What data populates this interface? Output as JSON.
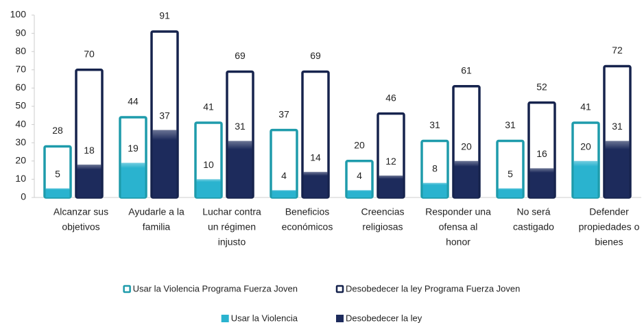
{
  "chart_data": {
    "type": "overlay_bar",
    "categories": [
      [
        "Alcanzar sus",
        "objetivos"
      ],
      [
        "Ayudarle a la",
        "familia"
      ],
      [
        "Luchar contra",
        "un régimen",
        "injusto"
      ],
      [
        "Beneficios",
        "económicos"
      ],
      [
        "Creencias",
        "religiosas"
      ],
      [
        "Responder una",
        "ofensa al",
        "honor"
      ],
      [
        "No será",
        "castigado"
      ],
      [
        "Defender",
        "propiedades o",
        "bienes"
      ]
    ],
    "series": [
      {
        "name": "Usar la Violencia Programa Fuerza Joven",
        "color": "#1e9bab",
        "style": "outline",
        "slot": 0,
        "values": [
          28,
          44,
          41,
          37,
          20,
          31,
          31,
          41
        ]
      },
      {
        "name": "Desobedecer la ley Programa Fuerza Joven",
        "color": "#16234d",
        "style": "outline",
        "slot": 1,
        "values": [
          70,
          91,
          69,
          69,
          46,
          61,
          52,
          72
        ]
      },
      {
        "name": "Usar la Violencia",
        "color": "#2ab3cf",
        "style": "filled",
        "slot": 0,
        "values": [
          5,
          19,
          10,
          4,
          4,
          8,
          5,
          20
        ]
      },
      {
        "name": "Desobedecer la ley",
        "color": "#1d2b5c",
        "style": "filled",
        "slot": 1,
        "values": [
          18,
          37,
          31,
          14,
          12,
          20,
          16,
          31
        ]
      }
    ],
    "ylim": [
      0,
      100
    ],
    "yticks": [
      0,
      10,
      20,
      30,
      40,
      50,
      60,
      70,
      80,
      90,
      100
    ]
  }
}
